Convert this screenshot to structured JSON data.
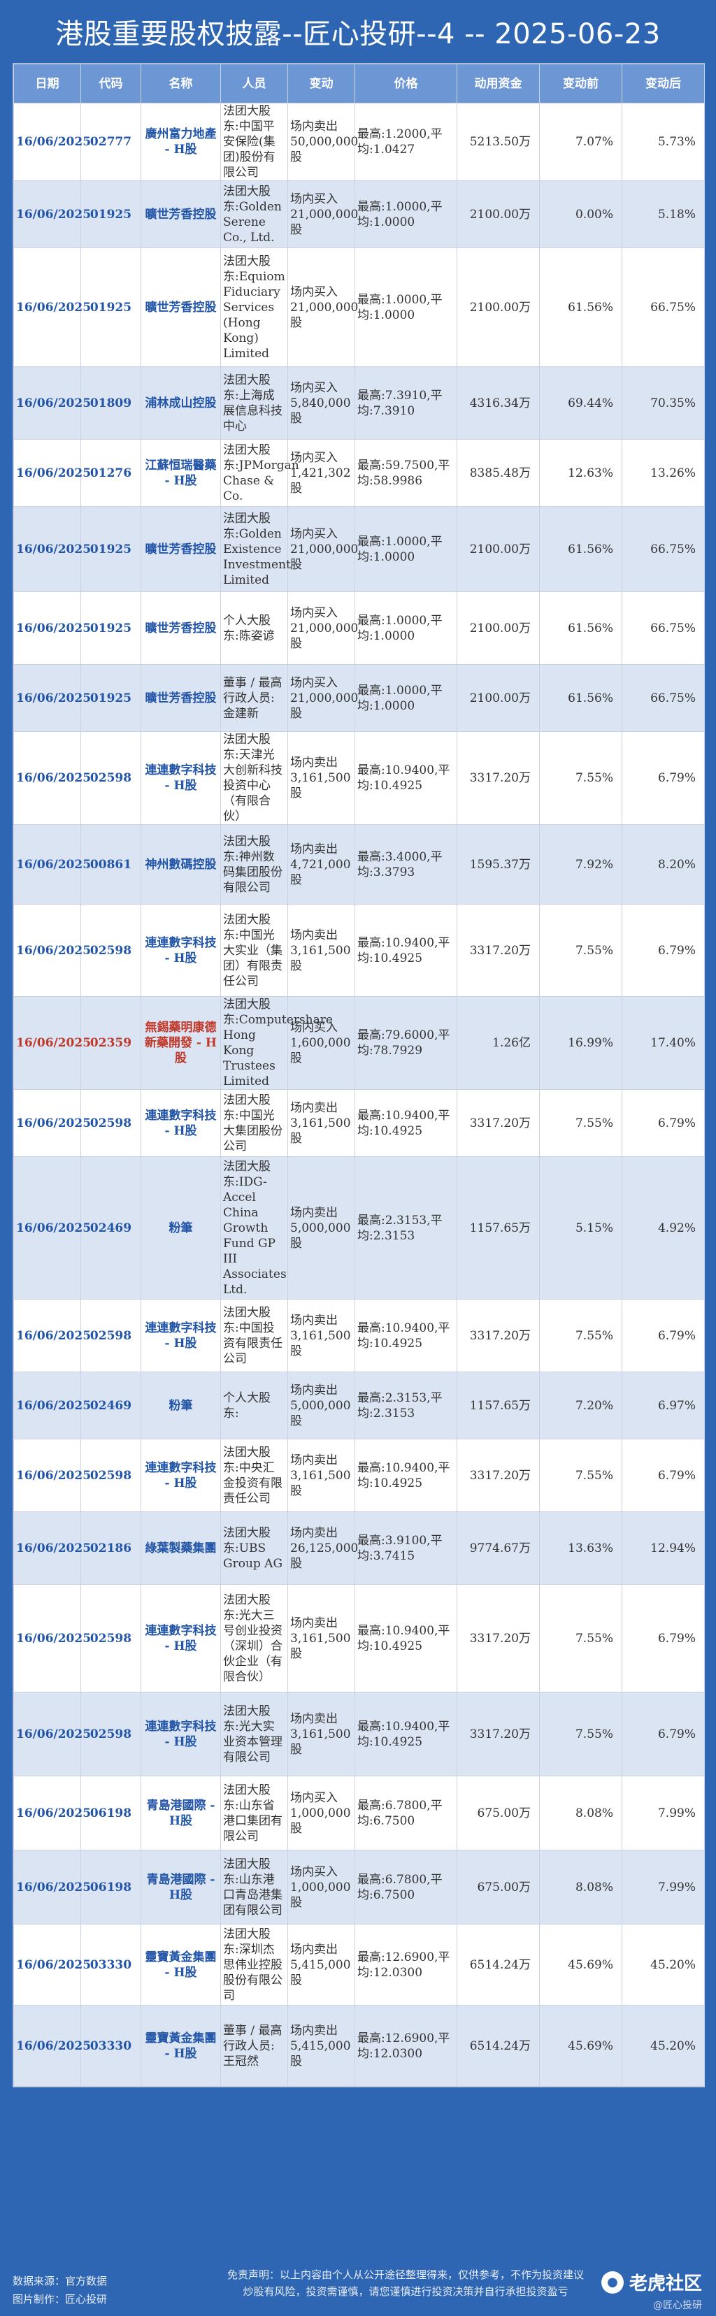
{
  "title": "港股重要股权披露--匠心投研--4 -- 2025-06-23",
  "columns": [
    "日期",
    "代码",
    "名称",
    "人员",
    "变动",
    "价格",
    "动用资金",
    "变动前",
    "变动后"
  ],
  "rows": [
    {
      "date": "16/06/2025",
      "code": "02777",
      "name": "廣州富力地產 - H股",
      "person": "法团大股东:中国平安保险(集团)股份有限公司",
      "change": "场内卖出50,000,000股",
      "price": "最高:1.2000,平均:1.0427",
      "amount": "5213.50万",
      "before": "7.07%",
      "after": "5.73%"
    },
    {
      "date": "16/06/2025",
      "code": "01925",
      "name": "曠世芳香控股",
      "person": "法团大股东:Golden Serene Co., Ltd.",
      "change": "场内买入21,000,000股",
      "price": "最高:1.0000,平均:1.0000",
      "amount": "2100.00万",
      "before": "0.00%",
      "after": "5.18%"
    },
    {
      "date": "16/06/2025",
      "code": "01925",
      "name": "曠世芳香控股",
      "person": "法团大股东:Equiom Fiduciary Services (Hong Kong) Limited",
      "change": "场内买入21,000,000股",
      "price": "最高:1.0000,平均:1.0000",
      "amount": "2100.00万",
      "before": "61.56%",
      "after": "66.75%"
    },
    {
      "date": "16/06/2025",
      "code": "01809",
      "name": "浦林成山控股",
      "person": "法团大股东:上海成展信息科技中心",
      "change": "场内买入5,840,000股",
      "price": "最高:7.3910,平均:7.3910",
      "amount": "4316.34万",
      "before": "69.44%",
      "after": "70.35%"
    },
    {
      "date": "16/06/2025",
      "code": "01276",
      "name": "江蘇恒瑞醫藥 - H股",
      "person": "法团大股东:JPMorgan Chase & Co.",
      "change": "场内买入1,421,302股",
      "price": "最高:59.7500,平均:58.9986",
      "amount": "8385.48万",
      "before": "12.63%",
      "after": "13.26%"
    },
    {
      "date": "16/06/2025",
      "code": "01925",
      "name": "曠世芳香控股",
      "person": "法团大股东:Golden Existence Investment Limited",
      "change": "场内买入21,000,000股",
      "price": "最高:1.0000,平均:1.0000",
      "amount": "2100.00万",
      "before": "61.56%",
      "after": "66.75%"
    },
    {
      "date": "16/06/2025",
      "code": "01925",
      "name": "曠世芳香控股",
      "person": "个人大股东:陈姿谚",
      "change": "场内买入21,000,000股",
      "price": "最高:1.0000,平均:1.0000",
      "amount": "2100.00万",
      "before": "61.56%",
      "after": "66.75%"
    },
    {
      "date": "16/06/2025",
      "code": "01925",
      "name": "曠世芳香控股",
      "person": "董事 / 最高行政人员:金建新",
      "change": "场内买入21,000,000股",
      "price": "最高:1.0000,平均:1.0000",
      "amount": "2100.00万",
      "before": "61.56%",
      "after": "66.75%"
    },
    {
      "date": "16/06/2025",
      "code": "02598",
      "name": "連連數字科技 - H股",
      "person": "法团大股东:天津光大创新科技投资中心（有限合伙）",
      "change": "场内卖出3,161,500股",
      "price": "最高:10.9400,平均:10.4925",
      "amount": "3317.20万",
      "before": "7.55%",
      "after": "6.79%"
    },
    {
      "date": "16/06/2025",
      "code": "00861",
      "name": "神州數碼控股",
      "person": "法团大股东:神州数码集团股份有限公司",
      "change": "场内卖出4,721,000股",
      "price": "最高:3.4000,平均:3.3793",
      "amount": "1595.37万",
      "before": "7.92%",
      "after": "8.20%"
    },
    {
      "date": "16/06/2025",
      "code": "02598",
      "name": "連連數字科技 - H股",
      "person": "法团大股东:中国光大实业（集团）有限责任公司",
      "change": "场内卖出3,161,500股",
      "price": "最高:10.9400,平均:10.4925",
      "amount": "3317.20万",
      "before": "7.55%",
      "after": "6.79%"
    },
    {
      "date": "16/06/2025",
      "code": "02359",
      "name": "無錫藥明康德新藥開發 - H股",
      "person": "法团大股东:Computershare Hong Kong Trustees Limited",
      "change": "场内买入1,600,000股",
      "price": "最高:79.6000,平均:78.7929",
      "amount": "1.26亿",
      "before": "16.99%",
      "after": "17.40%",
      "highlight": true
    },
    {
      "date": "16/06/2025",
      "code": "02598",
      "name": "連連數字科技 - H股",
      "person": "法团大股东:中国光大集团股份公司",
      "change": "场内卖出3,161,500股",
      "price": "最高:10.9400,平均:10.4925",
      "amount": "3317.20万",
      "before": "7.55%",
      "after": "6.79%"
    },
    {
      "date": "16/06/2025",
      "code": "02469",
      "name": "粉筆",
      "person": "法团大股东:IDG-Accel China Growth Fund GP III Associates Ltd.",
      "change": "场内卖出5,000,000股",
      "price": "最高:2.3153,平均:2.3153",
      "amount": "1157.65万",
      "before": "5.15%",
      "after": "4.92%"
    },
    {
      "date": "16/06/2025",
      "code": "02598",
      "name": "連連數字科技 - H股",
      "person": "法团大股东:中国投资有限责任公司",
      "change": "场内卖出3,161,500股",
      "price": "最高:10.9400,平均:10.4925",
      "amount": "3317.20万",
      "before": "7.55%",
      "after": "6.79%"
    },
    {
      "date": "16/06/2025",
      "code": "02469",
      "name": "粉筆",
      "person": "个人大股东:",
      "change": "场内卖出5,000,000股",
      "price": "最高:2.3153,平均:2.3153",
      "amount": "1157.65万",
      "before": "7.20%",
      "after": "6.97%"
    },
    {
      "date": "16/06/2025",
      "code": "02598",
      "name": "連連數字科技 - H股",
      "person": "法团大股东:中央汇金投资有限责任公司",
      "change": "场内卖出3,161,500股",
      "price": "最高:10.9400,平均:10.4925",
      "amount": "3317.20万",
      "before": "7.55%",
      "after": "6.79%"
    },
    {
      "date": "16/06/2025",
      "code": "02186",
      "name": "綠葉製藥集團",
      "person": "法团大股东:UBS Group AG",
      "change": "场内卖出26,125,000股",
      "price": "最高:3.9100,平均:3.7415",
      "amount": "9774.67万",
      "before": "13.63%",
      "after": "12.94%"
    },
    {
      "date": "16/06/2025",
      "code": "02598",
      "name": "連連數字科技 - H股",
      "person": "法团大股东:光大三号创业投资（深圳）合伙企业（有限合伙）",
      "change": "场内卖出3,161,500股",
      "price": "最高:10.9400,平均:10.4925",
      "amount": "3317.20万",
      "before": "7.55%",
      "after": "6.79%"
    },
    {
      "date": "16/06/2025",
      "code": "02598",
      "name": "連連數字科技 - H股",
      "person": "法团大股东:光大实业资本管理有限公司",
      "change": "场内卖出3,161,500股",
      "price": "最高:10.9400,平均:10.4925",
      "amount": "3317.20万",
      "before": "7.55%",
      "after": "6.79%"
    },
    {
      "date": "16/06/2025",
      "code": "06198",
      "name": "青島港國際 - H股",
      "person": "法团大股东:山东省港口集团有限公司",
      "change": "场内买入1,000,000股",
      "price": "最高:6.7800,平均:6.7500",
      "amount": "675.00万",
      "before": "8.08%",
      "after": "7.99%"
    },
    {
      "date": "16/06/2025",
      "code": "06198",
      "name": "青島港國際 - H股",
      "person": "法团大股东:山东港口青岛港集团有限公司",
      "change": "场内买入1,000,000股",
      "price": "最高:6.7800,平均:6.7500",
      "amount": "675.00万",
      "before": "8.08%",
      "after": "7.99%"
    },
    {
      "date": "16/06/2025",
      "code": "03330",
      "name": "靈寶黃金集團 - H股",
      "person": "法团大股东:深圳杰思伟业控股股份有限公司",
      "change": "场内卖出5,415,000股",
      "price": "最高:12.6900,平均:12.0300",
      "amount": "6514.24万",
      "before": "45.69%",
      "after": "45.20%"
    },
    {
      "date": "16/06/2025",
      "code": "03330",
      "name": "靈寶黃金集團 - H股",
      "person": "董事 / 最高行政人员:王冠然",
      "change": "场内卖出5,415,000股",
      "price": "最高:12.6900,平均:12.0300",
      "amount": "6514.24万",
      "before": "45.69%",
      "after": "45.20%"
    }
  ],
  "footer": {
    "source_data": "数据来源：官方数据",
    "source_image": "图片制作：匠心投研",
    "disclaimer_1": "免责声明：以上内容由个人从公开途径整理得来，仅供参考，不作为投资建议",
    "disclaimer_2": "炒股有风险，投资需谨慎，请您谨慎进行投资决策并自行承担投资盈亏",
    "logo_text": "老虎社区",
    "watermark": "@匠心投研"
  }
}
